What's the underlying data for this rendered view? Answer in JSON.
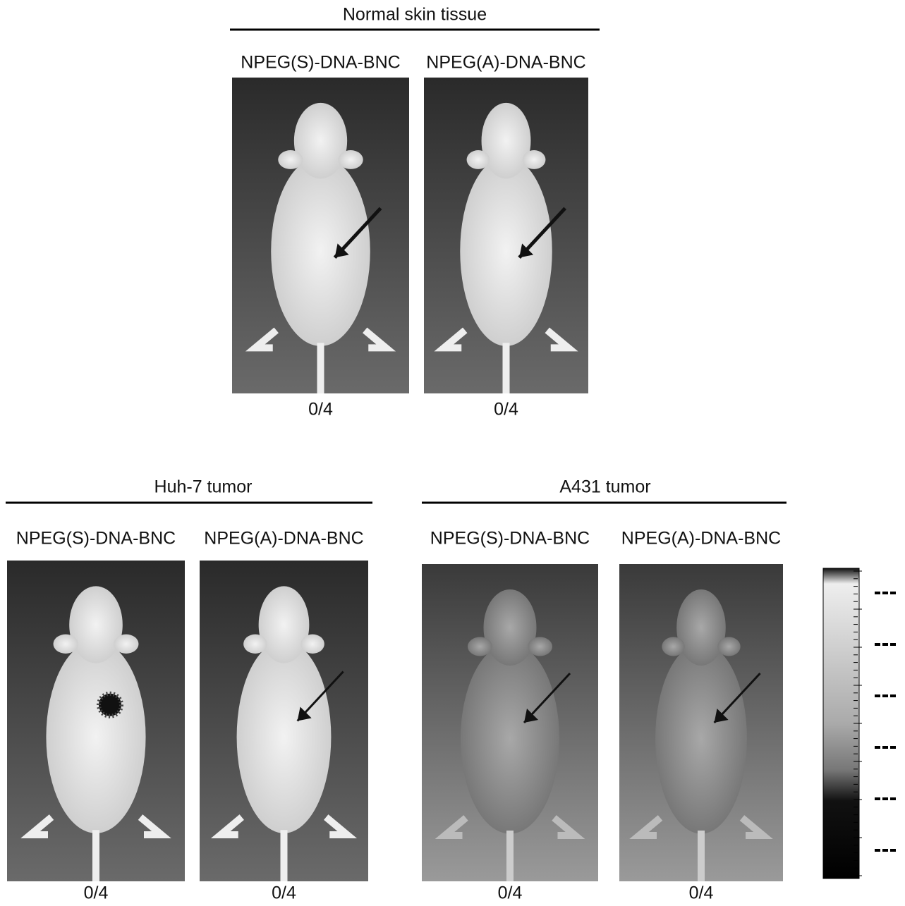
{
  "groups": [
    {
      "title": "Normal skin tissue",
      "panels": [
        {
          "label": "NPEG(S)-DNA-BNC",
          "result": "0/4"
        },
        {
          "label": "NPEG(A)-DNA-BNC",
          "result": "0/4"
        }
      ]
    },
    {
      "title": "Huh-7 tumor",
      "panels": [
        {
          "label": "NPEG(S)-DNA-BNC",
          "result": "0/4"
        },
        {
          "label": "NPEG(A)-DNA-BNC",
          "result": "0/4"
        }
      ]
    },
    {
      "title": "A431 tumor",
      "panels": [
        {
          "label": "NPEG(S)-DNA-BNC",
          "result": "0/4"
        },
        {
          "label": "NPEG(A)-DNA-BNC",
          "result": "0/4"
        }
      ]
    }
  ]
}
